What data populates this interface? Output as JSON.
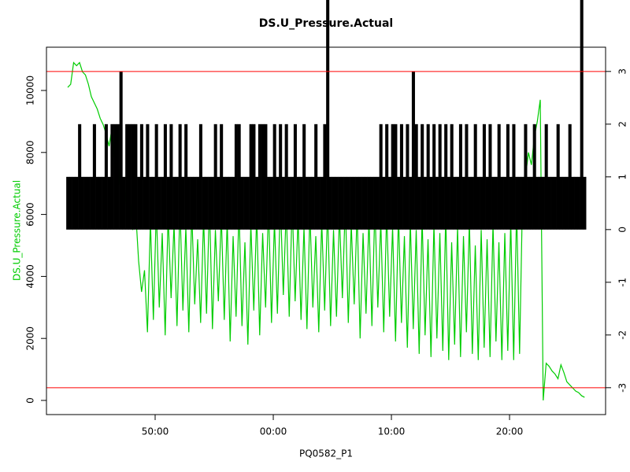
{
  "chart_data": {
    "type": "line",
    "title": "DS.U_Pressure.Actual",
    "xlabel": "PQ0582_P1",
    "ylabel": "DS.U_Pressure.Actual",
    "ylabel_color": "#00cc00",
    "xlim": [
      40.8,
      88.13
    ],
    "xticks": [
      {
        "value": 50,
        "label": "50:00"
      },
      {
        "value": 60,
        "label": "00:00"
      },
      {
        "value": 70,
        "label": "10:00"
      },
      {
        "value": 80,
        "label": "20:00"
      }
    ],
    "ylim": [
      -457,
      11396
    ],
    "yticks": [
      0,
      2000,
      4000,
      6000,
      8000,
      10000
    ],
    "y2lim": [
      -3.51,
      3.46
    ],
    "y2ticks": [
      -3,
      -2,
      -1,
      0,
      1,
      2,
      3
    ],
    "reference_lines": {
      "axis": "y2",
      "values": [
        3,
        -3
      ],
      "color": "#ff0000"
    },
    "x": [
      42.6,
      42.85,
      43.1,
      43.35,
      43.6,
      43.85,
      44.1,
      44.35,
      44.6,
      44.85,
      45.1,
      45.35,
      45.6,
      45.85,
      46.1,
      46.35,
      46.6,
      46.85,
      47.1,
      47.35,
      47.6,
      47.85,
      48.1,
      48.35,
      48.6,
      48.85,
      49.1,
      49.35,
      49.6,
      49.85,
      50.1,
      50.35,
      50.6,
      50.85,
      51.1,
      51.35,
      51.6,
      51.85,
      52.1,
      52.35,
      52.6,
      52.85,
      53.1,
      53.35,
      53.6,
      53.85,
      54.1,
      54.35,
      54.6,
      54.85,
      55.1,
      55.35,
      55.6,
      55.85,
      56.1,
      56.35,
      56.6,
      56.85,
      57.1,
      57.35,
      57.6,
      57.85,
      58.1,
      58.35,
      58.6,
      58.85,
      59.1,
      59.35,
      59.6,
      59.85,
      60.1,
      60.35,
      60.6,
      60.85,
      61.1,
      61.35,
      61.6,
      61.85,
      62.1,
      62.35,
      62.6,
      62.85,
      63.1,
      63.35,
      63.6,
      63.85,
      64.1,
      64.35,
      64.6,
      64.85,
      65.1,
      65.35,
      65.6,
      65.85,
      66.1,
      66.35,
      66.6,
      66.85,
      67.1,
      67.35,
      67.6,
      67.85,
      68.1,
      68.35,
      68.6,
      68.85,
      69.1,
      69.35,
      69.6,
      69.85,
      70.1,
      70.35,
      70.6,
      70.85,
      71.1,
      71.35,
      71.6,
      71.85,
      72.1,
      72.35,
      72.6,
      72.85,
      73.1,
      73.35,
      73.6,
      73.85,
      74.1,
      74.35,
      74.6,
      74.85,
      75.1,
      75.35,
      75.6,
      75.85,
      76.1,
      76.35,
      76.6,
      76.85,
      77.1,
      77.35,
      77.6,
      77.85,
      78.1,
      78.35,
      78.6,
      78.85,
      79.1,
      79.35,
      79.6,
      79.85,
      80.1,
      80.35,
      80.6,
      80.85,
      81.1,
      81.35,
      81.6,
      81.85,
      82.1,
      82.35,
      82.6,
      82.85,
      83.1,
      83.35,
      83.6,
      83.85,
      84.1,
      84.35,
      84.6,
      84.85,
      85.1,
      85.35,
      85.6,
      85.85,
      86.1,
      86.35
    ],
    "series": [
      {
        "axis": "y2",
        "draw": "h",
        "color": "#000000",
        "values": [
          1,
          1,
          1,
          1,
          2,
          1,
          1,
          1,
          1,
          2,
          1,
          1,
          1,
          2,
          1,
          2,
          2,
          2,
          3,
          1,
          2,
          2,
          2,
          2,
          1,
          2,
          1,
          2,
          1,
          1,
          2,
          1,
          1,
          2,
          1,
          2,
          1,
          1,
          2,
          1,
          2,
          1,
          1,
          1,
          1,
          2,
          1,
          1,
          1,
          1,
          2,
          1,
          2,
          1,
          1,
          1,
          1,
          2,
          2,
          1,
          1,
          1,
          2,
          2,
          1,
          2,
          2,
          2,
          1,
          1,
          2,
          1,
          2,
          1,
          2,
          1,
          1,
          2,
          1,
          1,
          2,
          1,
          1,
          1,
          2,
          1,
          1,
          2,
          4.4,
          1,
          1,
          1,
          1,
          1,
          1,
          1,
          1,
          1,
          1,
          1,
          1,
          1,
          1,
          1,
          1,
          1,
          2,
          1,
          2,
          1,
          2,
          2,
          1,
          2,
          1,
          2,
          1,
          3,
          2,
          1,
          2,
          1,
          2,
          1,
          2,
          1,
          2,
          1,
          2,
          1,
          2,
          1,
          1,
          2,
          1,
          2,
          1,
          1,
          2,
          1,
          1,
          2,
          1,
          2,
          1,
          1,
          2,
          1,
          1,
          2,
          1,
          2,
          1,
          1,
          1,
          2,
          1,
          1,
          2,
          1,
          1,
          1,
          2,
          1,
          1,
          1,
          2,
          1,
          1,
          1,
          2,
          1,
          1,
          1,
          4.4,
          1
        ]
      },
      {
        "axis": "y",
        "draw": "l",
        "color": "#00cc00",
        "values": [
          10100,
          10200,
          10900,
          10800,
          10900,
          10600,
          10500,
          10200,
          9800,
          9600,
          9400,
          9100,
          8900,
          8600,
          8200,
          8800,
          7500,
          7900,
          6600,
          7200,
          6000,
          6800,
          5500,
          6100,
          4500,
          3500,
          4200,
          2200,
          5800,
          2600,
          6200,
          3000,
          5400,
          2100,
          6000,
          3300,
          5700,
          2400,
          6300,
          2900,
          5600,
          2200,
          6100,
          3100,
          5200,
          2500,
          5900,
          2800,
          6400,
          2300,
          5500,
          3200,
          6000,
          2600,
          5800,
          1900,
          5300,
          2700,
          6200,
          2400,
          5100,
          1800,
          5700,
          2900,
          6000,
          2100,
          5400,
          3000,
          6300,
          2500,
          5800,
          2800,
          6500,
          3400,
          6200,
          2700,
          6400,
          3200,
          5900,
          2600,
          5600,
          2300,
          6100,
          3000,
          5300,
          2200,
          5800,
          2900,
          6200,
          2400,
          5500,
          2700,
          6000,
          3300,
          6400,
          2500,
          5700,
          3100,
          6100,
          2000,
          5400,
          2800,
          5900,
          2400,
          6300,
          3000,
          5800,
          2200,
          6100,
          2700,
          5600,
          1900,
          6000,
          2500,
          5300,
          1700,
          5800,
          2300,
          5500,
          1500,
          5900,
          2100,
          5200,
          1400,
          5700,
          2000,
          5400,
          1600,
          6000,
          1300,
          5100,
          1800,
          5600,
          1400,
          5300,
          2200,
          5800,
          1500,
          5000,
          1300,
          5500,
          1700,
          5200,
          1400,
          5700,
          1900,
          5100,
          1300,
          5400,
          1600,
          5800,
          1300,
          6200,
          1500,
          6600,
          7200,
          8000,
          7600,
          8500,
          9000,
          9700,
          0,
          1200,
          1100,
          950,
          850,
          700,
          1150,
          900,
          600,
          500,
          400,
          300,
          250,
          150,
          100
        ]
      }
    ]
  }
}
